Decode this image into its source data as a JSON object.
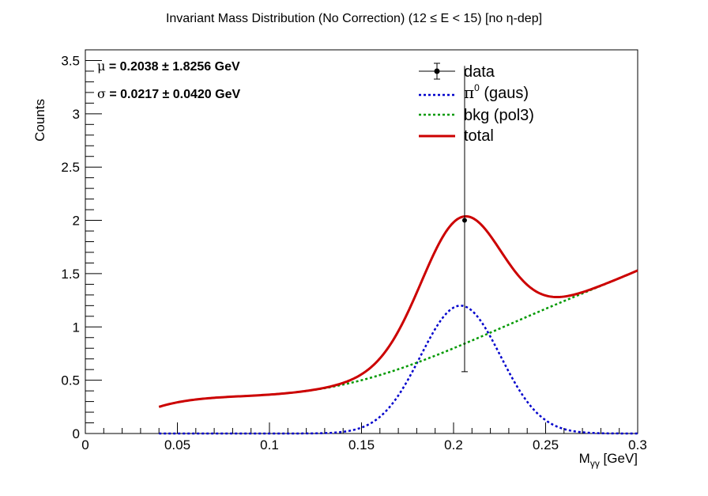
{
  "chart_data": {
    "type": "line",
    "title": "Invariant Mass Distribution (No Correction)   (12 ≤ E < 15)   [no η-dep]",
    "xlabel": "M_γγ  [GeV]",
    "ylabel": "Counts",
    "xlim": [
      0,
      0.3
    ],
    "ylim": [
      0,
      3.6
    ],
    "xticks": [
      0,
      0.05,
      0.1,
      0.15,
      0.2,
      0.25,
      0.3
    ],
    "xtick_labels": [
      "0",
      "0.05",
      "0.1",
      "0.15",
      "0.2",
      "0.25",
      "0.3"
    ],
    "yticks": [
      0,
      0.5,
      1,
      1.5,
      2,
      2.5,
      3,
      3.5
    ],
    "ytick_labels": [
      "0",
      "0.5",
      "1",
      "1.5",
      "2",
      "2.5",
      "3",
      "3.5"
    ],
    "grid": false,
    "legend_position": "top-right",
    "annotations": {
      "mu_symbol": "μ",
      "mu_text": " = 0.2038  ± 1.8256 GeV",
      "sigma_symbol": "σ",
      "sigma_text": " = 0.0217  ± 0.0420 GeV"
    },
    "legend": [
      {
        "key": "data",
        "label": "data"
      },
      {
        "key": "signal",
        "label": "π",
        "sup": "0",
        "suffix": " (gaus)"
      },
      {
        "key": "bkg",
        "label": "bkg (pol3)"
      },
      {
        "key": "total",
        "label": "total"
      }
    ],
    "fit_range": [
      0.04,
      0.3
    ],
    "series": [
      {
        "name": "data",
        "type": "errorbar",
        "color": "#000000",
        "points": [
          {
            "x": 0.206,
            "y": 2.0,
            "yerr_low": 1.42,
            "yerr_high": 1.45
          }
        ]
      },
      {
        "name": "π0 (gaus)",
        "type": "gaus",
        "color": "#0000cc",
        "dash": true,
        "amplitude": 1.2,
        "mean": 0.2038,
        "sigma": 0.0217
      },
      {
        "name": "bkg (pol3)",
        "type": "pol3",
        "color": "#009900",
        "dash": true,
        "samples": [
          [
            0.04,
            0.25
          ],
          [
            0.1,
            0.365
          ],
          [
            0.15,
            0.5
          ],
          [
            0.2,
            0.8
          ],
          [
            0.25,
            1.17
          ],
          [
            0.3,
            1.53
          ]
        ]
      },
      {
        "name": "total",
        "type": "sum",
        "color": "#cc0000",
        "dash": false
      }
    ]
  }
}
